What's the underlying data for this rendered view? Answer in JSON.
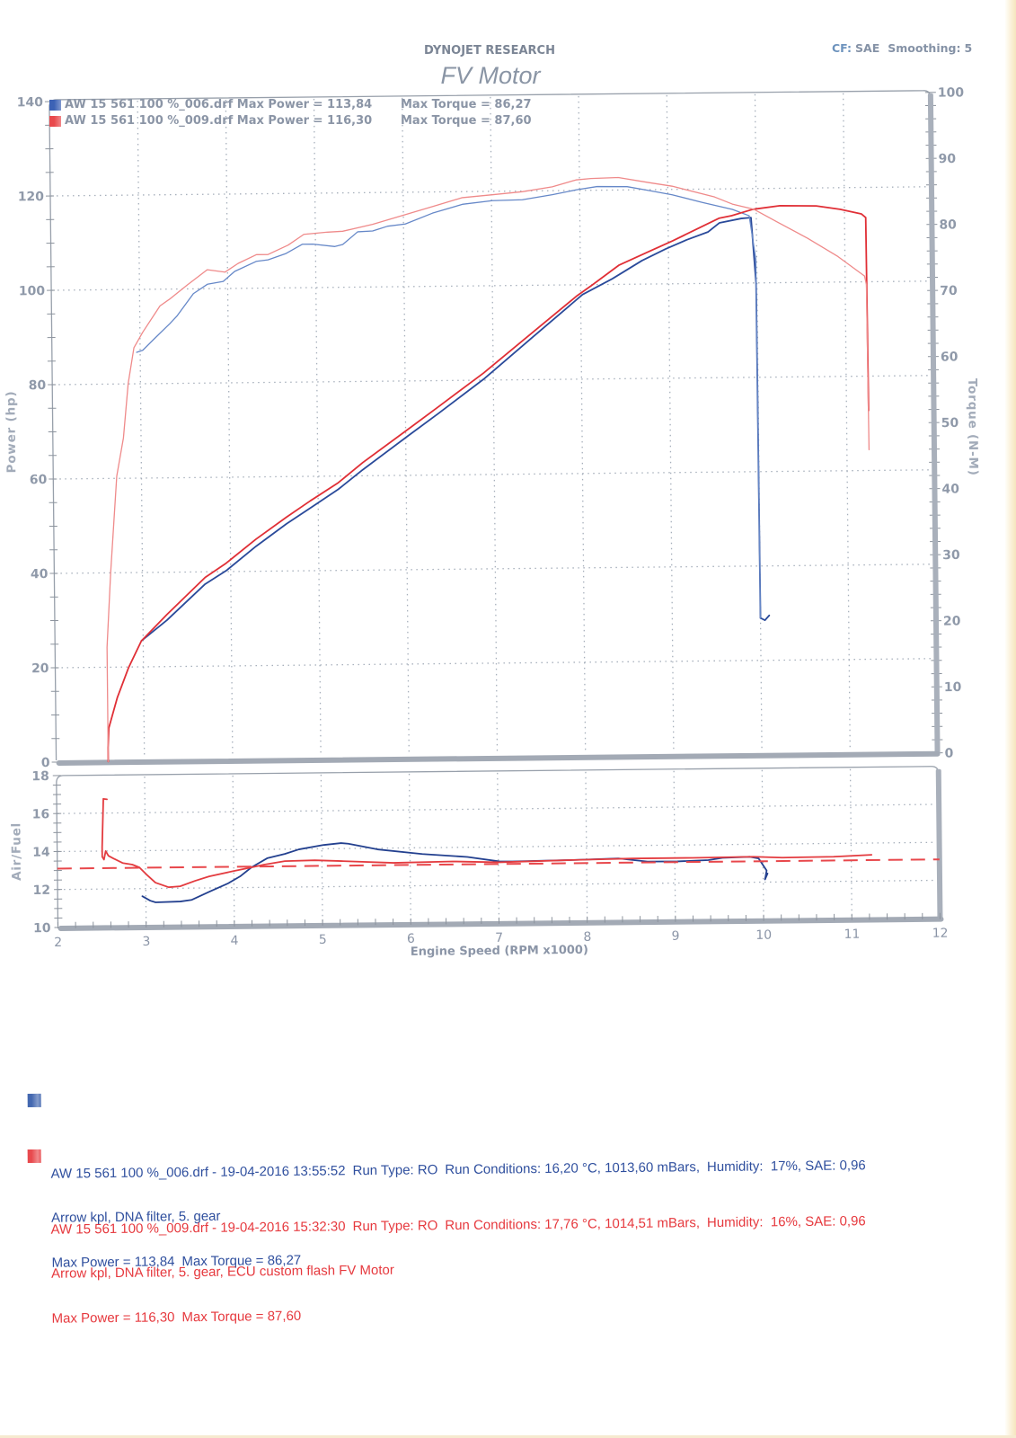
{
  "header": {
    "brand": "DYNOJET RESEARCH",
    "title": "FV Motor",
    "cf_label": "CF:",
    "cf_value": "SAE",
    "smoothing_label": "Smoothing:",
    "smoothing_value": "5"
  },
  "plot_legend": [
    {
      "file": "AW 15 561 100 %_006.drf",
      "max_power": "Max Power = 113,84",
      "max_torque": "Max Torque = 86,27",
      "color": "#3c62b5"
    },
    {
      "file": "AW 15 561 100 %_009.drf",
      "max_power": "Max Power = 116,30",
      "max_torque": "Max Torque = 87,60",
      "color": "#e9494c"
    }
  ],
  "runs": [
    {
      "file_line": "AW 15 561 100 %_006.drf - 19-04-2016 13:55:52",
      "run_type": "Run Type: RO",
      "conditions": "Run Conditions: 16,20 °C, 1013,60 mBars,",
      "humidity": "Humidity:  17%, SAE: 0,96",
      "notes": "Arrow kpl, DNA filter, 5. gear",
      "max_power": "Max Power = 113,84",
      "max_torque": "Max Torque = 86,27",
      "color": "#2f4f9e",
      "swatch_color": "#4468b0"
    },
    {
      "file_line": "AW 15 561 100 %_009.drf - 19-04-2016 15:32:30",
      "run_type": "Run Type: RO",
      "conditions": "Run Conditions: 17,76 °C, 1014,51 mBars,",
      "humidity": "Humidity:  16%, SAE: 0,96",
      "notes": "Arrow kpl, DNA filter, 5. gear, ECU custom flash FV Motor",
      "max_power": "Max Power = 116,30",
      "max_torque": "Max Torque = 87,60",
      "color": "#e6393e",
      "swatch_color": "#e84a4e"
    }
  ],
  "chart_data": [
    {
      "type": "line",
      "title": "FV Motor",
      "subtitle": "DYNOJET RESEARCH",
      "xlabel": "Engine Speed (RPM x1000)",
      "ylabel": "Power (hp)",
      "y2label": "Torque (N-M)",
      "xlim": [
        2,
        12
      ],
      "ylim": [
        0,
        140
      ],
      "y2lim": [
        0,
        100
      ],
      "xticks": [
        2,
        3,
        4,
        5,
        6,
        7,
        8,
        9,
        10,
        11,
        12
      ],
      "yticks": [
        0,
        20,
        40,
        60,
        80,
        100,
        120,
        140
      ],
      "y2ticks": [
        0,
        10,
        20,
        30,
        40,
        50,
        60,
        70,
        80,
        90,
        100
      ],
      "grid": true,
      "legend_position": "top-left",
      "legend": [
        "AW 15 561 100 %_006.drf Max Power = 113,84  Max Torque = 86,27",
        "AW 15 561 100 %_009.drf Max Power = 116,30  Max Torque = 87,60"
      ],
      "series": [
        {
          "name": "AW 15 561 100 %_006.drf Power (hp)",
          "axis": "left",
          "color": "#2a4a9a",
          "width": 1.8,
          "x": [
            2.98,
            3.27,
            3.71,
            3.95,
            4.29,
            4.64,
            4.91,
            5.23,
            5.51,
            6.03,
            6.37,
            6.89,
            7.45,
            8.02,
            8.36,
            8.7,
            8.97,
            9.21,
            9.45,
            9.58,
            9.83,
            9.94,
            9.99,
            10.0,
            10.05,
            10.1
          ],
          "y": [
            25.5,
            29.8,
            37.4,
            40.2,
            45.3,
            50.0,
            53.3,
            57.2,
            61.3,
            68.4,
            73.0,
            80.2,
            89.0,
            97.9,
            101.2,
            105.0,
            107.4,
            109.3,
            110.9,
            112.8,
            113.7,
            113.84,
            100.0,
            29.0,
            28.5,
            29.5
          ]
        },
        {
          "name": "AW 15 561 100 %_006.drf Torque (N-M)",
          "axis": "right",
          "color": "#6688c8",
          "width": 1.3,
          "x": [
            2.96,
            3.03,
            3.16,
            3.34,
            3.42,
            3.61,
            3.77,
            3.95,
            4.08,
            4.33,
            4.46,
            4.66,
            4.85,
            4.97,
            5.22,
            5.31,
            5.48,
            5.65,
            5.82,
            6.02,
            6.33,
            6.67,
            7.01,
            7.35,
            7.69,
            7.96,
            8.2,
            8.54,
            8.78,
            9.05,
            9.39,
            9.73,
            9.92,
            9.99,
            10.0
          ],
          "y": [
            61.9,
            62.2,
            63.9,
            66.2,
            67.3,
            70.7,
            72.1,
            72.5,
            74.0,
            75.5,
            75.7,
            76.6,
            78.0,
            78.0,
            77.6,
            77.9,
            79.8,
            79.9,
            80.6,
            80.9,
            82.5,
            83.8,
            84.3,
            84.4,
            85.1,
            85.8,
            86.27,
            86.2,
            85.6,
            84.9,
            83.7,
            82.6,
            81.6,
            75.0,
            20.6
          ]
        },
        {
          "name": "AW 15 561 100 %_009.drf Power (hp)",
          "axis": "left",
          "color": "#e02f36",
          "width": 1.8,
          "x": [
            2.59,
            2.59,
            2.6,
            2.7,
            2.83,
            2.98,
            3.27,
            3.71,
            3.95,
            4.29,
            4.64,
            4.91,
            5.23,
            5.51,
            6.03,
            6.37,
            6.89,
            7.45,
            7.96,
            8.13,
            8.44,
            8.78,
            9.05,
            9.32,
            9.58,
            9.72,
            9.96,
            10.27,
            10.68,
            10.95,
            11.19,
            11.24,
            11.25
          ],
          "y": [
            0.0,
            3.0,
            7.1,
            13.5,
            19.8,
            25.5,
            31.0,
            38.8,
            41.8,
            46.8,
            51.4,
            54.8,
            58.6,
            62.8,
            69.8,
            74.4,
            81.5,
            90.0,
            97.7,
            99.9,
            104.1,
            106.9,
            109.1,
            111.5,
            113.8,
            114.3,
            115.6,
            116.3,
            116.2,
            115.4,
            114.4,
            113.6,
            72.7
          ]
        },
        {
          "name": "AW 15 561 100 %_009.drf Torque (N-M)",
          "axis": "right",
          "color": "#ef8a8a",
          "width": 1.3,
          "x": [
            2.59,
            2.59,
            2.59,
            2.64,
            2.72,
            2.8,
            2.86,
            2.93,
            3.03,
            3.23,
            3.34,
            3.54,
            3.77,
            3.97,
            4.12,
            4.33,
            4.46,
            4.69,
            4.87,
            5.14,
            5.31,
            5.65,
            5.99,
            6.33,
            6.67,
            7.01,
            7.35,
            7.69,
            7.96,
            8.13,
            8.44,
            8.78,
            9.05,
            9.53,
            9.73,
            9.97,
            10.24,
            10.58,
            10.92,
            11.22,
            11.24,
            11.25
          ],
          "y": [
            0.0,
            12.8,
            17.3,
            28.6,
            43.2,
            49.0,
            57.2,
            62.6,
            64.9,
            68.9,
            69.9,
            72.0,
            74.3,
            73.9,
            75.2,
            76.5,
            76.5,
            77.9,
            79.5,
            79.8,
            79.9,
            80.9,
            82.2,
            83.5,
            84.8,
            85.2,
            85.6,
            86.3,
            87.3,
            87.5,
            87.6,
            86.8,
            86.2,
            84.5,
            83.4,
            82.6,
            80.6,
            78.1,
            75.3,
            72.3,
            71.0,
            46.0
          ]
        }
      ]
    },
    {
      "type": "line",
      "xlabel": "Engine Speed (RPM x1000)",
      "ylabel": "Air/Fuel",
      "xlim": [
        2,
        12
      ],
      "ylim": [
        10,
        18
      ],
      "xticks": [
        2,
        3,
        4,
        5,
        6,
        7,
        8,
        9,
        10,
        11,
        12
      ],
      "yticks": [
        10,
        12,
        14,
        16,
        18
      ],
      "grid": true,
      "series": [
        {
          "name": "AW 15 561 100 %_006.drf Air/Fuel",
          "color": "#23408f",
          "width": 1.8,
          "x": [
            2.96,
            3.05,
            3.11,
            3.39,
            3.52,
            3.72,
            3.93,
            4.07,
            4.2,
            4.38,
            4.58,
            4.74,
            5.02,
            5.22,
            5.3,
            5.63,
            6.14,
            6.65,
            7.01,
            7.16,
            7.85,
            8.36,
            8.69,
            9.03,
            9.38,
            9.54,
            9.85,
            9.95,
            10.04,
            10.02,
            10.05
          ],
          "y": [
            11.6,
            11.36,
            11.27,
            11.3,
            11.38,
            11.8,
            12.22,
            12.59,
            13.06,
            13.53,
            13.75,
            13.98,
            14.2,
            14.29,
            14.25,
            13.94,
            13.67,
            13.49,
            13.24,
            13.23,
            13.27,
            13.33,
            13.15,
            13.14,
            13.19,
            13.3,
            13.34,
            13.25,
            12.61,
            12.14,
            12.45
          ]
        },
        {
          "name": "AW 15 561 100 %_009.drf Air/Fuel",
          "color": "#e33b3f",
          "width": 1.8,
          "x": [
            2.57,
            2.53,
            2.51,
            2.51,
            2.53,
            2.55,
            2.58,
            2.64,
            2.74,
            2.85,
            2.93,
            3.01,
            3.11,
            3.26,
            3.39,
            3.56,
            3.72,
            4.0,
            4.2,
            4.34,
            4.58,
            4.92,
            5.22,
            5.81,
            6.48,
            7.01,
            7.85,
            8.52,
            9.2,
            9.89,
            10.22,
            10.8,
            11.23
          ],
          "y": [
            16.72,
            16.75,
            14.2,
            13.7,
            13.55,
            14.0,
            13.75,
            13.6,
            13.36,
            13.27,
            13.12,
            12.74,
            12.31,
            12.06,
            12.1,
            12.38,
            12.61,
            12.88,
            13.06,
            13.19,
            13.37,
            13.4,
            13.34,
            13.22,
            13.26,
            13.19,
            13.27,
            13.32,
            13.32,
            13.34,
            13.28,
            13.3,
            13.38
          ]
        },
        {
          "name": "Target Air/Fuel",
          "color": "#e8474b",
          "width": 2,
          "dashed": true,
          "x": [
            2,
            12
          ],
          "y": [
            13.1,
            13.1
          ]
        }
      ]
    }
  ]
}
